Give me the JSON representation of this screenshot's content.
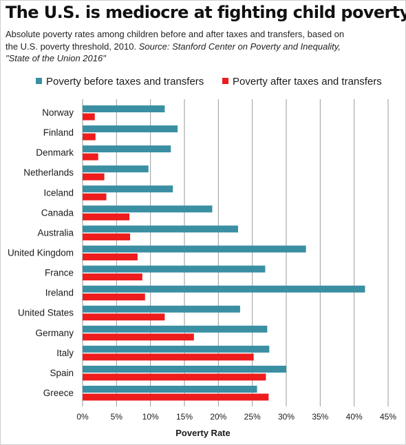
{
  "title": "The U.S. is mediocre at fighting child poverty",
  "subtitle": {
    "text": "Absolute poverty rates among children before and after taxes and transfers, based on the U.S. poverty threshold, 2010.",
    "source_label": "Source:",
    "source_text": "Stanford Center on Poverty and Inequality, \"State of the Union 2016\""
  },
  "colors": {
    "before": "#3a8fa3",
    "after": "#ee1c1c",
    "grid": "#9a9a9a"
  },
  "chart_data": {
    "type": "bar",
    "orientation": "horizontal",
    "title": "The U.S. is mediocre at fighting child poverty",
    "xlabel": "Poverty Rate",
    "ylabel": "",
    "xlim": [
      0,
      45
    ],
    "x_ticks": [
      "0%",
      "5%",
      "10%",
      "15%",
      "20%",
      "25%",
      "30%",
      "35%",
      "40%",
      "45%"
    ],
    "grid": true,
    "legend_position": "top",
    "categories": [
      "Norway",
      "Finland",
      "Denmark",
      "Netherlands",
      "Iceland",
      "Canada",
      "Australia",
      "United Kingdom",
      "France",
      "Ireland",
      "United States",
      "Germany",
      "Italy",
      "Spain",
      "Greece"
    ],
    "series": [
      {
        "name": "Poverty before taxes and transfers",
        "values": [
          12.1,
          14.0,
          13.0,
          9.7,
          13.3,
          19.1,
          22.9,
          32.9,
          26.9,
          41.6,
          23.2,
          27.2,
          27.5,
          30.0,
          25.7
        ]
      },
      {
        "name": "Poverty after taxes and transfers",
        "values": [
          1.8,
          1.9,
          2.3,
          3.2,
          3.5,
          6.9,
          7.0,
          8.1,
          8.8,
          9.2,
          12.1,
          16.4,
          25.2,
          27.0,
          27.4
        ]
      }
    ]
  }
}
